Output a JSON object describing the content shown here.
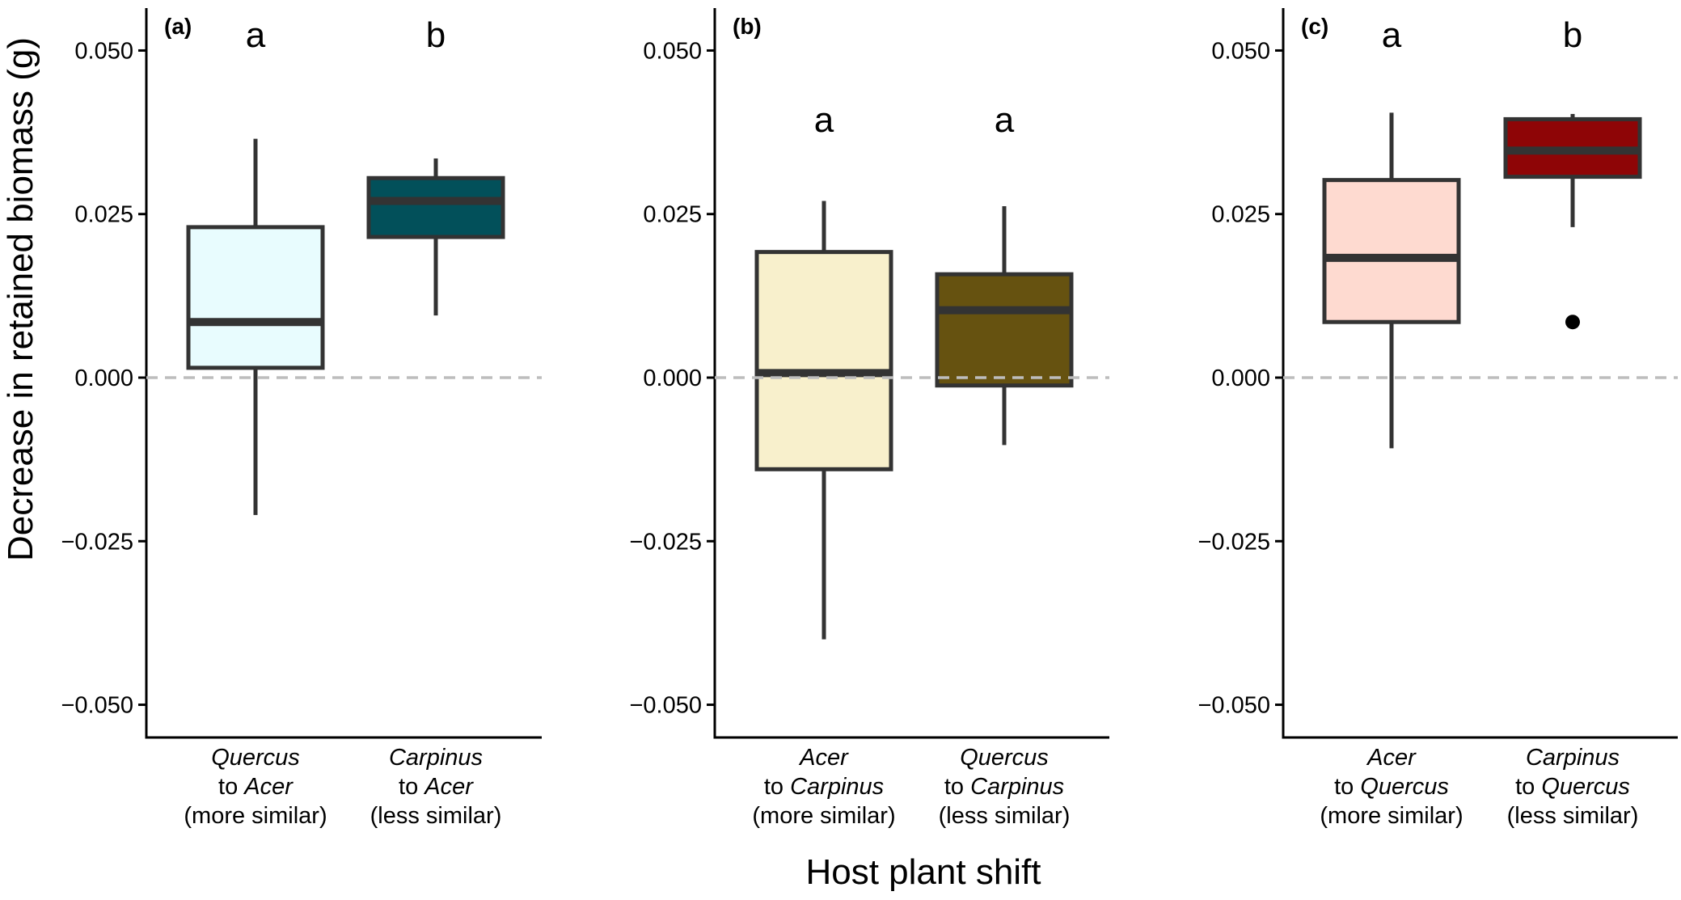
{
  "figure": {
    "ylabel": "Decrease in retained biomass (g)",
    "xlabel": "Host plant shift"
  },
  "chart_data": [
    {
      "type": "box",
      "panel_label": "(a)",
      "ylim": [
        -0.055,
        0.055
      ],
      "yticks": [
        "0.050",
        "0.025",
        "0.000",
        "−0.025",
        "−0.050"
      ],
      "ytick_values": [
        0.05,
        0.025,
        0,
        -0.025,
        -0.05
      ],
      "reference_line": 0,
      "groups": [
        {
          "label_species1": "Quercus",
          "label_species2": "Acer",
          "label_similarity": "(more similar)",
          "letter": "a",
          "fill": "#e8fcfe",
          "whisker_low": -0.021,
          "q1": 0.0015,
          "median": 0.0085,
          "q3": 0.023,
          "whisker_high": 0.0365,
          "outliers": []
        },
        {
          "label_species1": "Carpinus",
          "label_species2": "Acer",
          "label_similarity": "(less similar)",
          "letter": "b",
          "fill": "#02505a",
          "whisker_low": 0.0095,
          "q1": 0.0215,
          "median": 0.027,
          "q3": 0.0305,
          "whisker_high": 0.0335,
          "outliers": []
        }
      ]
    },
    {
      "type": "box",
      "panel_label": "(b)",
      "ylim": [
        -0.055,
        0.055
      ],
      "yticks": [
        "0.050",
        "0.025",
        "0.000",
        "−0.025",
        "−0.050"
      ],
      "ytick_values": [
        0.05,
        0.025,
        0,
        -0.025,
        -0.05
      ],
      "reference_line": 0,
      "groups": [
        {
          "label_species1": "Acer",
          "label_species2": "Carpinus",
          "label_similarity": "(more similar)",
          "letter": "a",
          "fill": "#f8f0cc",
          "whisker_low": -0.04,
          "q1": -0.014,
          "median": 0.0007,
          "q3": 0.0192,
          "whisker_high": 0.027,
          "outliers": []
        },
        {
          "label_species1": "Quercus",
          "label_species2": "Carpinus",
          "label_similarity": "(less similar)",
          "letter": "a",
          "fill": "#665210",
          "whisker_low": -0.0103,
          "q1": -0.0012,
          "median": 0.0103,
          "q3": 0.0158,
          "whisker_high": 0.0262,
          "outliers": []
        }
      ]
    },
    {
      "type": "box",
      "panel_label": "(c)",
      "ylim": [
        -0.055,
        0.055
      ],
      "yticks": [
        "0.050",
        "0.025",
        "0.000",
        "−0.025",
        "−0.050"
      ],
      "ytick_values": [
        0.05,
        0.025,
        0,
        -0.025,
        -0.05
      ],
      "reference_line": 0,
      "groups": [
        {
          "label_species1": "Acer",
          "label_species2": "Quercus",
          "label_similarity": "(more similar)",
          "letter": "a",
          "fill": "#fedad0",
          "whisker_low": -0.0108,
          "q1": 0.0085,
          "median": 0.0183,
          "q3": 0.0302,
          "whisker_high": 0.0405,
          "outliers": []
        },
        {
          "label_species1": "Carpinus",
          "label_species2": "Quercus",
          "label_similarity": "(less similar)",
          "letter": "b",
          "fill": "#8e0506",
          "whisker_low": 0.023,
          "q1": 0.0307,
          "median": 0.0347,
          "q3": 0.0395,
          "whisker_high": 0.0403,
          "outliers": [
            0.0085
          ]
        }
      ]
    }
  ]
}
